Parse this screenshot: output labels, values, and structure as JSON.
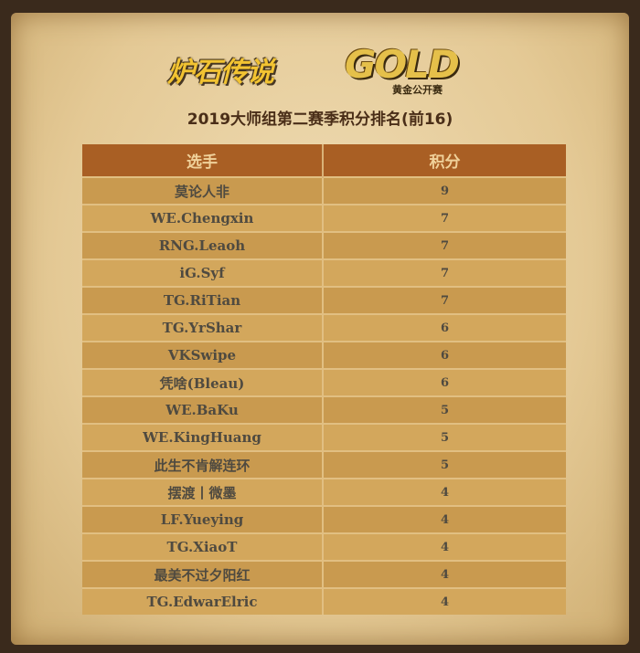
{
  "logos": {
    "hearthstone": "炉石传说",
    "gold": "GOLD",
    "gold_sub": "黄金公开赛"
  },
  "title": "2019大师组第二赛季积分排名(前16)",
  "table": {
    "headers": [
      "选手",
      "积分"
    ],
    "rows": [
      {
        "player": "莫论人非",
        "score": "9"
      },
      {
        "player": "WE.Chengxin",
        "score": "7"
      },
      {
        "player": "RNG.Leaoh",
        "score": "7"
      },
      {
        "player": "iG.Syf",
        "score": "7"
      },
      {
        "player": "TG.RiTian",
        "score": "7"
      },
      {
        "player": "TG.YrShar",
        "score": "6"
      },
      {
        "player": "VKSwipe",
        "score": "6"
      },
      {
        "player": "凭啥(Bleau)",
        "score": "6"
      },
      {
        "player": "WE.BaKu",
        "score": "5"
      },
      {
        "player": "WE.KingHuang",
        "score": "5"
      },
      {
        "player": "此生不肯解连环",
        "score": "5"
      },
      {
        "player": "摆渡丨微墨",
        "score": "4"
      },
      {
        "player": "LF.Yueying",
        "score": "4"
      },
      {
        "player": "TG.XiaoT",
        "score": "4"
      },
      {
        "player": "最美不过夕阳红",
        "score": "4"
      },
      {
        "player": "TG.EdwarElric",
        "score": "4"
      }
    ]
  },
  "colors": {
    "header_bg": "#a95f24",
    "row_dark": "#c99a4f",
    "row_light": "#d3a75c",
    "title": "#4a2e18"
  }
}
